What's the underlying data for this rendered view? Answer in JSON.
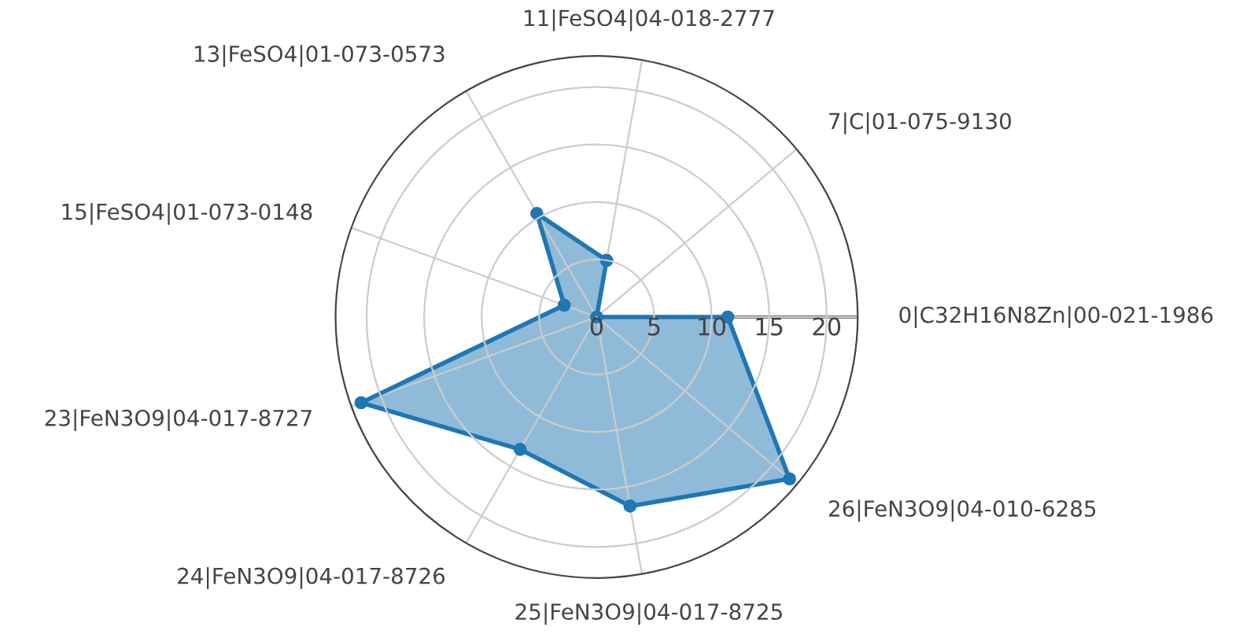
{
  "chart_data": {
    "type": "radar",
    "categories": [
      "11|FeSO4|04-018-2777",
      "7|C|01-075-9130",
      "0|C32H16N8Zn|00-021-1986",
      "26|FeN3O9|04-010-6285",
      "25|FeN3O9|04-017-8725",
      "24|FeN3O9|04-017-8726",
      "23|FeN3O9|04-017-8727",
      "15|FeSO4|01-073-0148",
      "13|FeSO4|01-073-0573"
    ],
    "series": [
      {
        "color": "#1f77b4",
        "values": [
          5.0,
          0,
          11.4,
          21.9,
          16.7,
          13.3,
          21.8,
          3.0,
          10.4
        ]
      }
    ],
    "ylim": [
      0,
      22.7
    ],
    "yticks": [
      0,
      5,
      10,
      15,
      20
    ],
    "marker": "circle",
    "grid": true
  }
}
